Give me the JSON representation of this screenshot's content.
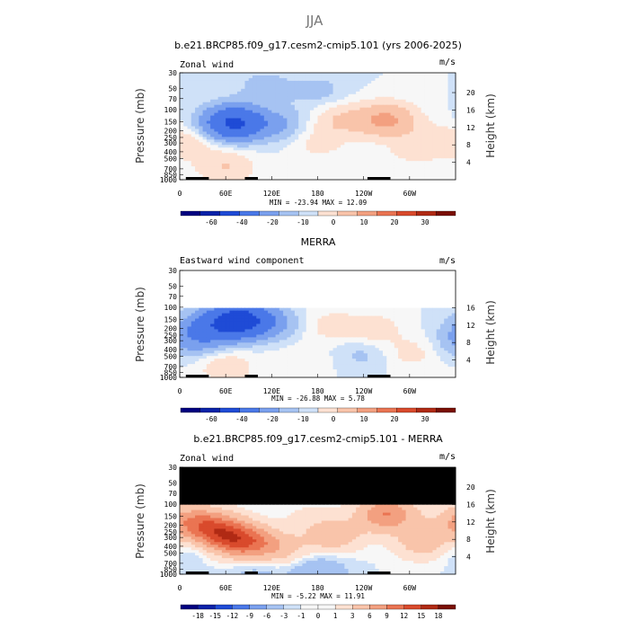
{
  "figure_title": "JJA",
  "colors": {
    "neg": [
      "#000080",
      "#0a22a8",
      "#1f4bd6",
      "#4a78e8",
      "#7aa0ee",
      "#a6c3f2",
      "#cfe1f8"
    ],
    "zero": "#f7f7f7",
    "pos": [
      "#fde1d2",
      "#f9c4aa",
      "#f3a080",
      "#ea7452",
      "#d94a2c",
      "#b02a14",
      "#7a0f04"
    ],
    "land": "#000000"
  },
  "chart_data": [
    {
      "type": "heatmap",
      "title": "b.e21.BRCP85.f09_g17.cesm2-cmip5.101 (yrs 2006-2025)",
      "variable": "Zonal wind",
      "units": "m/s",
      "ylabel": "Pressure (mb)",
      "y2label": "Height (km)",
      "pressure_ticks": [
        "30",
        "50",
        "70",
        "100",
        "150",
        "200",
        "250",
        "300",
        "400",
        "500",
        "700",
        "850",
        "1000"
      ],
      "height_ticks": [
        "4",
        "8",
        "12",
        "16",
        "20"
      ],
      "lon_ticks": [
        "0",
        "60E",
        "120E",
        "180",
        "120W",
        "60W"
      ],
      "stats": "MIN = -23.94   MAX =  12.09",
      "colorbar_labels": [
        "-60",
        "-40",
        "-20",
        "-10",
        "0",
        "10",
        "20",
        "30"
      ],
      "top_pressure": 30,
      "field": [
        {
          "lon": 70,
          "p": 155,
          "v": -22
        },
        {
          "lon": 130,
          "p": 165,
          "v": -5
        },
        {
          "lon": 15,
          "p": 300,
          "v": 3
        },
        {
          "lon": 60,
          "p": 650,
          "v": 5
        },
        {
          "lon": 270,
          "p": 140,
          "v": 11
        },
        {
          "lon": 210,
          "p": 140,
          "v": 5
        },
        {
          "lon": 180,
          "p": 300,
          "v": 3
        },
        {
          "lon": 300,
          "p": 400,
          "v": 2
        },
        {
          "lon": 180,
          "p": 55,
          "v": -3
        },
        {
          "lon": 110,
          "p": 45,
          "v": -3
        },
        {
          "lon": 330,
          "p": 280,
          "v": 3
        }
      ]
    },
    {
      "type": "heatmap",
      "title": "MERRA",
      "variable": "Eastward wind component",
      "units": "m/s",
      "ylabel": "Pressure (mb)",
      "y2label": "Height (km)",
      "pressure_ticks": [
        "30",
        "50",
        "70",
        "100",
        "150",
        "200",
        "250",
        "300",
        "400",
        "500",
        "700",
        "850",
        "1000"
      ],
      "height_ticks": [
        "4",
        "8",
        "12",
        "16"
      ],
      "lon_ticks": [
        "0",
        "60E",
        "120E",
        "180",
        "120W",
        "60W"
      ],
      "stats": "MIN = -26.88   MAX =  5.78",
      "colorbar_labels": [
        "-60",
        "-40",
        "-20",
        "-10",
        "0",
        "10",
        "20",
        "30"
      ],
      "top_pressure": 100,
      "field": [
        {
          "lon": 80,
          "p": 155,
          "v": -25
        },
        {
          "lon": 40,
          "p": 190,
          "v": -10
        },
        {
          "lon": 130,
          "p": 170,
          "v": -4
        },
        {
          "lon": 15,
          "p": 300,
          "v": -6
        },
        {
          "lon": 250,
          "p": 210,
          "v": 4
        },
        {
          "lon": 190,
          "p": 180,
          "v": 3
        },
        {
          "lon": 60,
          "p": 700,
          "v": 4
        },
        {
          "lon": 300,
          "p": 450,
          "v": 3
        },
        {
          "lon": 240,
          "p": 450,
          "v": -3
        },
        {
          "lon": 160,
          "p": 600,
          "v": 2
        }
      ]
    },
    {
      "type": "heatmap",
      "title": "b.e21.BRCP85.f09_g17.cesm2-cmip5.101 - MERRA",
      "variable": "Zonal wind",
      "units": "m/s",
      "ylabel": "Pressure (mb)",
      "y2label": "Height (km)",
      "pressure_ticks": [
        "30",
        "50",
        "70",
        "100",
        "150",
        "200",
        "250",
        "300",
        "400",
        "500",
        "700",
        "850",
        "1000"
      ],
      "height_ticks": [
        "4",
        "8",
        "12",
        "16",
        "20"
      ],
      "lon_ticks": [
        "0",
        "60E",
        "120E",
        "180",
        "120W",
        "60W"
      ],
      "stats": "MIN = -5.22   MAX =  11.91",
      "colorbar_labels": [
        "-18",
        "-15",
        "-12",
        "-9",
        "-6",
        "-3",
        "-1",
        "0",
        "1",
        "3",
        "6",
        "9",
        "12",
        "15",
        "18"
      ],
      "top_pressure": 100,
      "field": [
        {
          "lon": 50,
          "p": 250,
          "v": 11
        },
        {
          "lon": 85,
          "p": 350,
          "v": 10
        },
        {
          "lon": 15,
          "p": 175,
          "v": 7
        },
        {
          "lon": 270,
          "p": 140,
          "v": 9
        },
        {
          "lon": 200,
          "p": 280,
          "v": 5
        },
        {
          "lon": 130,
          "p": 450,
          "v": 4
        },
        {
          "lon": 320,
          "p": 350,
          "v": 5
        },
        {
          "lon": 180,
          "p": 880,
          "v": -3
        },
        {
          "lon": 100,
          "p": 880,
          "v": -2
        },
        {
          "lon": 165,
          "p": 140,
          "v": 1
        },
        {
          "lon": 10,
          "p": 420,
          "v": -2
        }
      ]
    }
  ]
}
